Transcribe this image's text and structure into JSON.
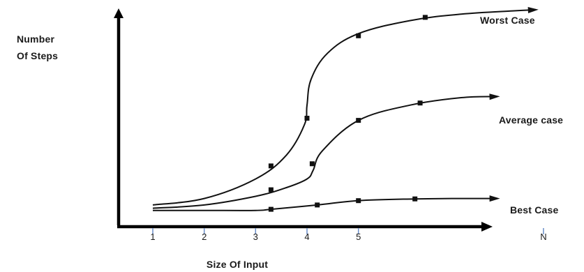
{
  "chart_data": {
    "type": "line",
    "xlabel": "Size Of Input",
    "ylabel": [
      "Number",
      "Of Steps"
    ],
    "x_ticks": [
      {
        "label": "1",
        "value": 1
      },
      {
        "label": "2",
        "value": 2
      },
      {
        "label": "3",
        "value": 3
      },
      {
        "label": "4",
        "value": 4
      },
      {
        "label": "5",
        "value": 5
      },
      {
        "label": "N",
        "value": 8.6
      }
    ],
    "xlim": [
      0.35,
      8.8
    ],
    "ylim": [
      0,
      100
    ],
    "grid": false,
    "series": [
      {
        "name": "Worst Case",
        "curve": [
          [
            1,
            10
          ],
          [
            2,
            13
          ],
          [
            3,
            22
          ],
          [
            3.6,
            33
          ],
          [
            3.95,
            47
          ],
          [
            4.0,
            56
          ],
          [
            4.08,
            68
          ],
          [
            4.4,
            80
          ],
          [
            5,
            89
          ],
          [
            6,
            95
          ],
          [
            7,
            98
          ],
          [
            8,
            99.5
          ],
          [
            8.45,
            100
          ]
        ],
        "markers": [
          [
            3.3,
            28
          ],
          [
            4.0,
            50
          ],
          [
            5,
            88
          ],
          [
            6.3,
            96.5
          ]
        ]
      },
      {
        "name": "Average case",
        "curve": [
          [
            1,
            8.5
          ],
          [
            2,
            10
          ],
          [
            3,
            14
          ],
          [
            3.6,
            18
          ],
          [
            4.0,
            22
          ],
          [
            4.12,
            26
          ],
          [
            4.3,
            35
          ],
          [
            5,
            49
          ],
          [
            6,
            56
          ],
          [
            7,
            59.5
          ],
          [
            7.7,
            60
          ]
        ],
        "markers": [
          [
            3.3,
            17
          ],
          [
            4.1,
            29
          ],
          [
            5,
            49
          ],
          [
            6.2,
            57
          ]
        ]
      },
      {
        "name": "Best Case",
        "curve": [
          [
            1,
            7.5
          ],
          [
            2,
            7.5
          ],
          [
            3,
            7.5
          ],
          [
            3.3,
            8
          ],
          [
            4.2,
            10
          ],
          [
            5,
            12
          ],
          [
            6.1,
            12.8
          ],
          [
            7,
            13
          ],
          [
            7.7,
            13
          ]
        ],
        "markers": [
          [
            3.3,
            8
          ],
          [
            4.2,
            10
          ],
          [
            5,
            12
          ],
          [
            6.1,
            12.8
          ]
        ]
      }
    ]
  }
}
